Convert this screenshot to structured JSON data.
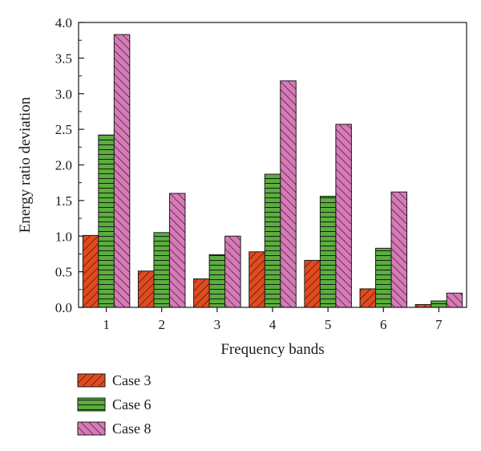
{
  "chart_data": {
    "type": "bar",
    "title": "",
    "xlabel": "Frequency bands",
    "ylabel": "Energy ratio deviation",
    "categories": [
      "1",
      "2",
      "3",
      "4",
      "5",
      "6",
      "7"
    ],
    "ylim": [
      0,
      4.0
    ],
    "yticks": [
      "0.0",
      "0.5",
      "1.0",
      "1.5",
      "2.0",
      "2.5",
      "3.0",
      "3.5",
      "4.0"
    ],
    "grid": false,
    "legend_position": "bottom-left",
    "series": [
      {
        "name": "Case 3",
        "color": "#e34a1c",
        "pattern": "diagonal-forward",
        "values": [
          1.01,
          0.51,
          0.4,
          0.78,
          0.66,
          0.26,
          0.04
        ]
      },
      {
        "name": "Case 6",
        "color": "#5aae3c",
        "pattern": "horizontal",
        "values": [
          2.42,
          1.05,
          0.74,
          1.87,
          1.56,
          0.83,
          0.09
        ]
      },
      {
        "name": "Case 8",
        "color": "#d879b8",
        "pattern": "diagonal-backward",
        "values": [
          3.83,
          1.6,
          1.0,
          3.18,
          2.57,
          1.62,
          0.2
        ]
      }
    ]
  }
}
